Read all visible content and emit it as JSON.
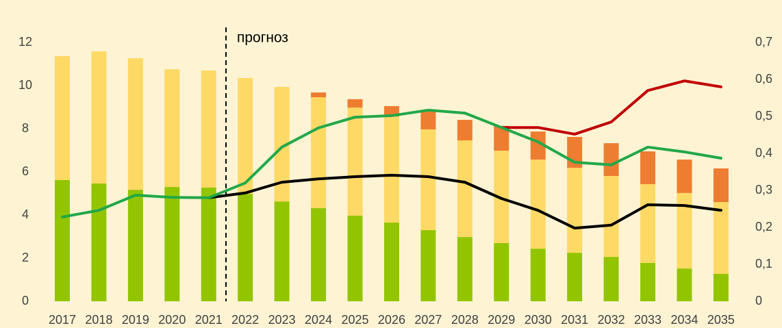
{
  "chart_data": {
    "type": "bar",
    "stacked": true,
    "annotation": "прогноз",
    "categories": [
      "2017",
      "2018",
      "2019",
      "2020",
      "2021",
      "2022",
      "2023",
      "2024",
      "2025",
      "2026",
      "2027",
      "2028",
      "2029",
      "2030",
      "2031",
      "2032",
      "2033",
      "2034",
      "2035"
    ],
    "series": [
      {
        "color": "#92c500",
        "values": [
          5.62,
          5.46,
          5.17,
          5.3,
          5.27,
          4.98,
          4.63,
          4.32,
          3.97,
          3.65,
          3.3,
          2.98,
          2.7,
          2.44,
          2.25,
          2.06,
          1.78,
          1.52,
          1.27
        ]
      },
      {
        "color": "#ffd966",
        "values": [
          5.75,
          6.13,
          6.1,
          5.46,
          5.43,
          5.37,
          5.31,
          5.14,
          5.01,
          4.92,
          4.67,
          4.48,
          4.28,
          4.13,
          3.94,
          3.75,
          3.65,
          3.5,
          3.33
        ]
      },
      {
        "color": "#ed7d31",
        "values": [
          0,
          0,
          0,
          0,
          0,
          0,
          0,
          0.22,
          0.39,
          0.48,
          0.83,
          0.95,
          1.15,
          1.3,
          1.43,
          1.52,
          1.52,
          1.55,
          1.56
        ]
      },
      {
        "type": "line",
        "axis": "y2",
        "color": "#c00000",
        "values": [
          null,
          null,
          null,
          null,
          null,
          null,
          null,
          null,
          null,
          null,
          null,
          null,
          0.47,
          0.47,
          0.452,
          0.485,
          0.57,
          0.596,
          0.58
        ]
      },
      {
        "type": "line",
        "axis": "y2",
        "color": "#000000",
        "values": [
          null,
          null,
          null,
          null,
          0.28,
          0.293,
          0.322,
          0.331,
          0.337,
          0.341,
          0.337,
          0.322,
          0.278,
          0.246,
          0.198,
          0.206,
          0.261,
          0.259,
          0.246
        ]
      },
      {
        "type": "line",
        "axis": "y2",
        "color": "#21a84a",
        "values": [
          0.228,
          0.246,
          0.287,
          0.281,
          0.28,
          0.32,
          0.417,
          0.469,
          0.498,
          0.502,
          0.517,
          0.509,
          0.47,
          0.431,
          0.376,
          0.369,
          0.417,
          0.404,
          0.387
        ]
      }
    ],
    "ylim": [
      0,
      12
    ],
    "yticks": [
      0,
      2,
      4,
      6,
      8,
      10,
      12
    ],
    "y2lim": [
      0,
      0.7
    ],
    "y2ticks": [
      0,
      {
        "value": 0.1,
        "label": "0,1"
      },
      {
        "value": 0.2,
        "label": "0,2"
      },
      {
        "value": 0.3,
        "label": "0,3"
      },
      {
        "value": 0.4,
        "label": "0,4"
      },
      {
        "value": 0.5,
        "label": "0,5"
      },
      {
        "value": 0.6,
        "label": "0,6"
      },
      {
        "value": 0.7,
        "label": "0,7"
      }
    ],
    "grid": false
  }
}
